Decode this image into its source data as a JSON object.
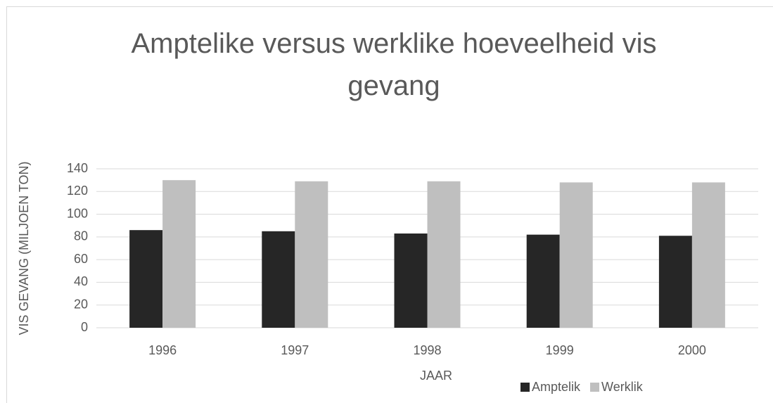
{
  "chart_data": {
    "type": "bar",
    "title": "Amptelike versus werklike hoeveelheid vis gevang",
    "x_label": "JAAR",
    "y_label": "VIS GEVANG (MILJOEN TON)",
    "categories": [
      "1996",
      "1997",
      "1998",
      "1999",
      "2000"
    ],
    "series": [
      {
        "name": "Amptelik",
        "color": "#262626",
        "values": [
          86,
          85,
          83,
          82,
          81
        ]
      },
      {
        "name": "Werklik",
        "color": "#bfbfbf",
        "values": [
          130,
          129,
          129,
          128,
          128
        ]
      }
    ],
    "ylim": [
      0,
      140
    ],
    "yticks": [
      0,
      20,
      40,
      60,
      80,
      100,
      120,
      140
    ],
    "grid": true,
    "legend": "bottom-right"
  }
}
